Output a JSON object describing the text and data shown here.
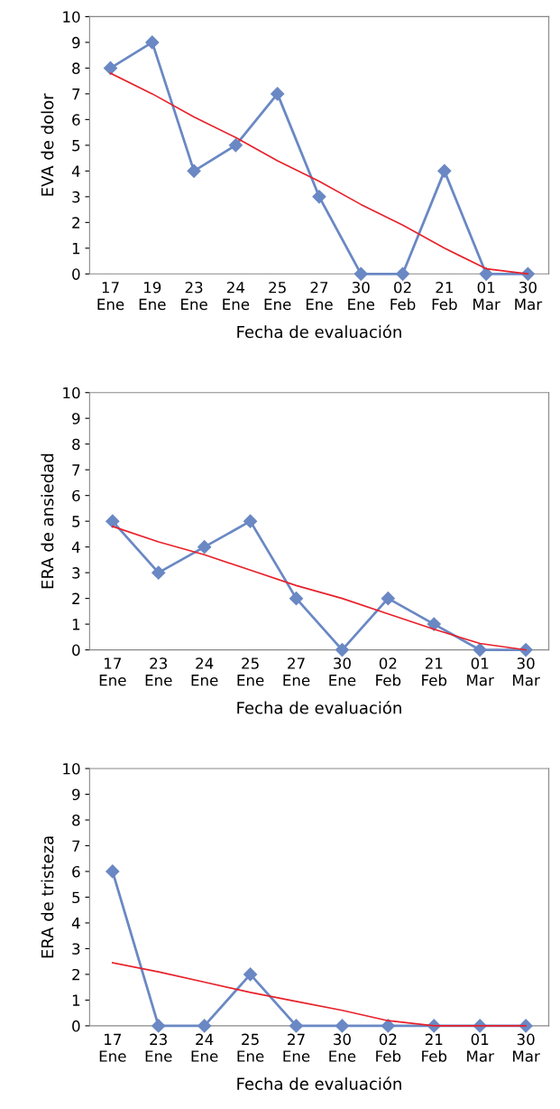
{
  "chart_data": [
    {
      "type": "line",
      "xlabel": "Fecha de evaluación",
      "ylabel": "EVA de dolor",
      "categories": [
        "17\nEne",
        "19\nEne",
        "23\nEne",
        "24\nEne",
        "25\nEne",
        "27\nEne",
        "30\nEne",
        "02\nFeb",
        "21\nFeb",
        "01\nMar",
        "30\nMar"
      ],
      "ylim": [
        0,
        10
      ],
      "yticks": [
        0,
        1,
        2,
        3,
        4,
        5,
        6,
        7,
        8,
        9,
        10
      ],
      "grid": false,
      "legend": false,
      "series": [
        {
          "color": "#6a88c4",
          "marker": "diamond",
          "values": [
            8,
            9,
            4,
            5,
            7,
            3,
            0,
            0,
            4,
            0,
            0
          ]
        },
        {
          "color": "#e8202a",
          "marker": "none",
          "values": [
            7.8,
            7.0,
            6.1,
            5.3,
            4.4,
            3.6,
            2.7,
            1.9,
            1.0,
            0.2,
            0
          ]
        }
      ]
    },
    {
      "type": "line",
      "xlabel": "Fecha de evaluación",
      "ylabel": "ERA de ansiedad",
      "categories": [
        "17\nEne",
        "23\nEne",
        "24\nEne",
        "25\nEne",
        "27\nEne",
        "30\nEne",
        "02\nFeb",
        "21\nFeb",
        "01\nMar",
        "30\nMar"
      ],
      "ylim": [
        0,
        10
      ],
      "yticks": [
        0,
        1,
        2,
        3,
        4,
        5,
        6,
        7,
        8,
        9,
        10
      ],
      "grid": false,
      "legend": false,
      "series": [
        {
          "color": "#6a88c4",
          "marker": "diamond",
          "values": [
            5,
            3,
            4,
            5,
            2,
            0,
            2,
            1,
            0,
            0
          ]
        },
        {
          "color": "#e8202a",
          "marker": "none",
          "values": [
            4.8,
            4.2,
            3.7,
            3.1,
            2.5,
            2.0,
            1.4,
            0.8,
            0.25,
            0
          ]
        }
      ]
    },
    {
      "type": "line",
      "xlabel": "Fecha de evaluación",
      "ylabel": "ERA de tristeza",
      "categories": [
        "17\nEne",
        "23\nEne",
        "24\nEne",
        "25\nEne",
        "27\nEne",
        "30\nEne",
        "02\nFeb",
        "21\nFeb",
        "01\nMar",
        "30\nMar"
      ],
      "ylim": [
        0,
        10
      ],
      "yticks": [
        0,
        1,
        2,
        3,
        4,
        5,
        6,
        7,
        8,
        9,
        10
      ],
      "grid": false,
      "legend": false,
      "series": [
        {
          "color": "#6a88c4",
          "marker": "diamond",
          "values": [
            6,
            0,
            0,
            2,
            0,
            0,
            0,
            0,
            0,
            0
          ]
        },
        {
          "color": "#e8202a",
          "marker": "none",
          "values": [
            2.45,
            2.1,
            1.7,
            1.3,
            0.95,
            0.6,
            0.2,
            0,
            0,
            0
          ]
        }
      ]
    }
  ]
}
